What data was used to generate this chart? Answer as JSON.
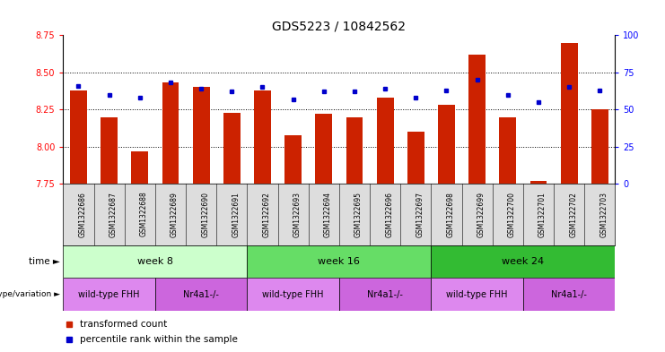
{
  "title": "GDS5223 / 10842562",
  "samples": [
    "GSM1322686",
    "GSM1322687",
    "GSM1322688",
    "GSM1322689",
    "GSM1322690",
    "GSM1322691",
    "GSM1322692",
    "GSM1322693",
    "GSM1322694",
    "GSM1322695",
    "GSM1322696",
    "GSM1322697",
    "GSM1322698",
    "GSM1322699",
    "GSM1322700",
    "GSM1322701",
    "GSM1322702",
    "GSM1322703"
  ],
  "red_values": [
    8.38,
    8.2,
    7.97,
    8.43,
    8.4,
    8.23,
    8.38,
    8.08,
    8.22,
    8.2,
    8.33,
    8.1,
    8.28,
    8.62,
    8.2,
    7.77,
    8.7,
    8.25
  ],
  "blue_values": [
    66,
    60,
    58,
    68,
    64,
    62,
    65,
    57,
    62,
    62,
    64,
    58,
    63,
    70,
    60,
    55,
    65,
    63
  ],
  "ylim_left": [
    7.75,
    8.75
  ],
  "ylim_right": [
    0,
    100
  ],
  "yticks_left": [
    7.75,
    8.0,
    8.25,
    8.5,
    8.75
  ],
  "yticks_right": [
    0,
    25,
    50,
    75,
    100
  ],
  "grid_values": [
    8.0,
    8.25,
    8.5
  ],
  "bar_color": "#cc2200",
  "dot_color": "#0000cc",
  "time_groups": [
    {
      "label": "week 8",
      "start": 0,
      "end": 5,
      "color": "#ccffcc"
    },
    {
      "label": "week 16",
      "start": 6,
      "end": 11,
      "color": "#66dd66"
    },
    {
      "label": "week 24",
      "start": 12,
      "end": 17,
      "color": "#33bb33"
    }
  ],
  "genotype_groups": [
    {
      "label": "wild-type FHH",
      "start": 0,
      "end": 2,
      "color": "#dd88ee"
    },
    {
      "label": "Nr4a1-/-",
      "start": 3,
      "end": 5,
      "color": "#cc66dd"
    },
    {
      "label": "wild-type FHH",
      "start": 6,
      "end": 8,
      "color": "#dd88ee"
    },
    {
      "label": "Nr4a1-/-",
      "start": 9,
      "end": 11,
      "color": "#cc66dd"
    },
    {
      "label": "wild-type FHH",
      "start": 12,
      "end": 14,
      "color": "#dd88ee"
    },
    {
      "label": "Nr4a1-/-",
      "start": 15,
      "end": 17,
      "color": "#cc66dd"
    }
  ],
  "bar_bottom": 7.75,
  "bar_width": 0.55,
  "label_fontsize": 7.5,
  "tick_fontsize": 7.0,
  "row_label_color": "#333333"
}
